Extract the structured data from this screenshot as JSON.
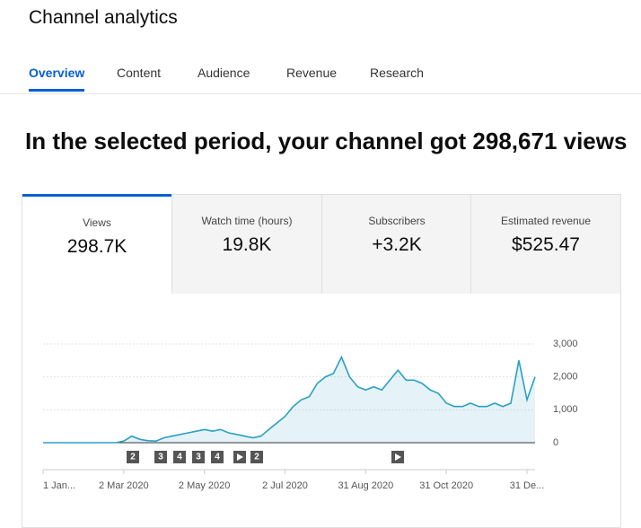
{
  "header": {
    "title": "Channel analytics"
  },
  "tabs": [
    "Overview",
    "Content",
    "Audience",
    "Revenue",
    "Research"
  ],
  "headline": "In the selected period, your channel got 298,671 views",
  "metrics": [
    {
      "label": "Views",
      "value": "298.7K"
    },
    {
      "label": "Watch time (hours)",
      "value": "19.8K"
    },
    {
      "label": "Subscribers",
      "value": "+3.2K"
    },
    {
      "label": "Estimated revenue",
      "value": "$525.47"
    }
  ],
  "markers": [
    "2",
    "3",
    "4",
    "3",
    "4",
    "2"
  ],
  "chart_data": {
    "type": "line",
    "color": "#2aa0c4",
    "categories": [
      "1 Jan...",
      null,
      null,
      null,
      null,
      null,
      null,
      null,
      null,
      null,
      "2 Mar 2020",
      null,
      null,
      null,
      null,
      null,
      null,
      null,
      null,
      null,
      "2 May 2020",
      null,
      null,
      null,
      null,
      null,
      null,
      null,
      null,
      null,
      "2 Jul 2020",
      null,
      null,
      null,
      null,
      null,
      null,
      null,
      null,
      null,
      "31 Aug 2020",
      null,
      null,
      null,
      null,
      null,
      null,
      null,
      null,
      null,
      "31 Oct 2020",
      null,
      null,
      null,
      null,
      null,
      null,
      null,
      null,
      null,
      "31 De...",
      null
    ],
    "values": [
      0,
      0,
      0,
      0,
      0,
      0,
      0,
      0,
      0,
      0,
      50,
      200,
      100,
      60,
      50,
      150,
      200,
      250,
      300,
      350,
      400,
      350,
      400,
      300,
      250,
      200,
      150,
      200,
      400,
      600,
      800,
      1100,
      1300,
      1400,
      1800,
      2000,
      2100,
      2600,
      2000,
      1700,
      1600,
      1700,
      1600,
      1900,
      2200,
      1900,
      1900,
      1800,
      1600,
      1500,
      1200,
      1100,
      1100,
      1200,
      1100,
      1100,
      1200,
      1100,
      1200,
      2500,
      1300,
      2000
    ],
    "ylim": [
      0,
      3000
    ],
    "yticks": [
      0,
      {
        "value": 1000,
        "label": "1,000"
      },
      {
        "value": 2000,
        "label": "2,000"
      },
      {
        "value": 3000,
        "label": "3,000"
      }
    ],
    "grid": true
  }
}
